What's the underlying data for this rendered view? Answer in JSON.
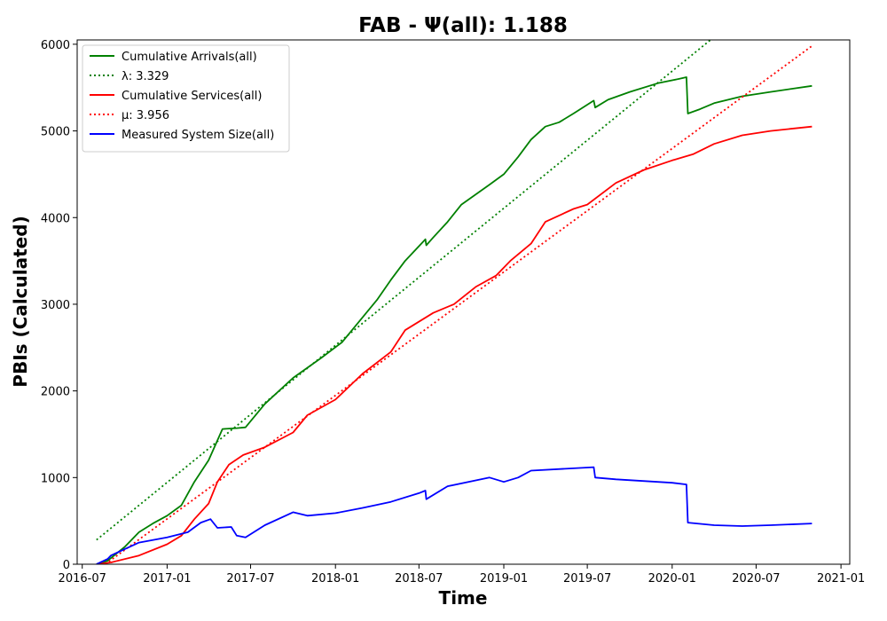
{
  "chart_data": {
    "type": "line",
    "title": "FAB -  Ψ(all): 1.188",
    "xlabel": "Time",
    "ylabel": "PBIs (Calculated)",
    "xlim": [
      "2016-06-20",
      "2021-01-20"
    ],
    "ylim": [
      0,
      6050
    ],
    "x_ticks": [
      "2016-07",
      "2017-01",
      "2017-07",
      "2018-01",
      "2018-07",
      "2019-01",
      "2019-07",
      "2020-01",
      "2020-07",
      "2021-01"
    ],
    "y_ticks": [
      0,
      1000,
      2000,
      3000,
      4000,
      5000,
      6000
    ],
    "grid": false,
    "legend_position": "top-left",
    "series": [
      {
        "name": "Cumulative Arrivals(all)",
        "color": "#008000",
        "style": "solid",
        "points": [
          [
            "2016-08-01",
            0
          ],
          [
            "2016-08-25",
            40
          ],
          [
            "2016-10-01",
            200
          ],
          [
            "2016-11-01",
            370
          ],
          [
            "2016-12-01",
            470
          ],
          [
            "2017-01-01",
            560
          ],
          [
            "2017-02-01",
            680
          ],
          [
            "2017-03-01",
            950
          ],
          [
            "2017-04-01",
            1200
          ],
          [
            "2017-05-01",
            1560
          ],
          [
            "2017-06-01",
            1570
          ],
          [
            "2017-06-20",
            1580
          ],
          [
            "2017-08-01",
            1850
          ],
          [
            "2017-10-01",
            2150
          ],
          [
            "2017-12-01",
            2380
          ],
          [
            "2018-01-15",
            2560
          ],
          [
            "2018-03-01",
            2850
          ],
          [
            "2018-04-01",
            3050
          ],
          [
            "2018-05-01",
            3280
          ],
          [
            "2018-06-01",
            3500
          ],
          [
            "2018-07-15",
            3750
          ],
          [
            "2018-07-17",
            3680
          ],
          [
            "2018-08-01",
            3770
          ],
          [
            "2018-09-01",
            3950
          ],
          [
            "2018-10-01",
            4150
          ],
          [
            "2018-12-01",
            4380
          ],
          [
            "2019-01-01",
            4500
          ],
          [
            "2019-02-01",
            4700
          ],
          [
            "2019-03-01",
            4900
          ],
          [
            "2019-04-01",
            5050
          ],
          [
            "2019-05-01",
            5100
          ],
          [
            "2019-06-01",
            5200
          ],
          [
            "2019-07-15",
            5350
          ],
          [
            "2019-07-18",
            5270
          ],
          [
            "2019-08-15",
            5360
          ],
          [
            "2019-10-01",
            5450
          ],
          [
            "2019-12-01",
            5550
          ],
          [
            "2020-01-15",
            5600
          ],
          [
            "2020-02-01",
            5620
          ],
          [
            "2020-02-04",
            5200
          ],
          [
            "2020-03-01",
            5250
          ],
          [
            "2020-04-01",
            5320
          ],
          [
            "2020-06-01",
            5400
          ],
          [
            "2020-08-01",
            5450
          ],
          [
            "2020-10-30",
            5520
          ]
        ]
      },
      {
        "name": "λ: 3.329",
        "color": "#008000",
        "style": "dotted",
        "points": [
          [
            "2016-08-01",
            280
          ],
          [
            "2020-03-24",
            6050
          ]
        ]
      },
      {
        "name": "Cumulative Services(all)",
        "color": "#ff0000",
        "style": "solid",
        "points": [
          [
            "2016-08-01",
            0
          ],
          [
            "2016-09-01",
            20
          ],
          [
            "2016-11-01",
            100
          ],
          [
            "2017-01-01",
            230
          ],
          [
            "2017-02-01",
            330
          ],
          [
            "2017-03-01",
            520
          ],
          [
            "2017-04-01",
            700
          ],
          [
            "2017-04-20",
            950
          ],
          [
            "2017-05-15",
            1150
          ],
          [
            "2017-06-15",
            1260
          ],
          [
            "2017-08-01",
            1350
          ],
          [
            "2017-10-01",
            1520
          ],
          [
            "2017-11-01",
            1720
          ],
          [
            "2018-01-01",
            1900
          ],
          [
            "2018-03-01",
            2200
          ],
          [
            "2018-05-01",
            2450
          ],
          [
            "2018-06-01",
            2700
          ],
          [
            "2018-08-01",
            2900
          ],
          [
            "2018-09-15",
            3000
          ],
          [
            "2018-11-01",
            3200
          ],
          [
            "2018-12-15",
            3330
          ],
          [
            "2019-01-15",
            3500
          ],
          [
            "2019-03-01",
            3700
          ],
          [
            "2019-04-01",
            3950
          ],
          [
            "2019-06-01",
            4100
          ],
          [
            "2019-07-01",
            4150
          ],
          [
            "2019-09-01",
            4400
          ],
          [
            "2019-11-01",
            4550
          ],
          [
            "2020-01-01",
            4660
          ],
          [
            "2020-02-15",
            4730
          ],
          [
            "2020-04-01",
            4850
          ],
          [
            "2020-06-01",
            4950
          ],
          [
            "2020-08-01",
            5000
          ],
          [
            "2020-10-30",
            5050
          ]
        ]
      },
      {
        "name": "μ: 3.956",
        "color": "#ff0000",
        "style": "dotted",
        "points": [
          [
            "2016-08-20",
            0
          ],
          [
            "2020-10-30",
            5980
          ]
        ]
      },
      {
        "name": "Measured System Size(all)",
        "color": "#0000ff",
        "style": "solid",
        "points": [
          [
            "2016-08-01",
            0
          ],
          [
            "2016-08-25",
            60
          ],
          [
            "2016-09-01",
            100
          ],
          [
            "2016-11-01",
            250
          ],
          [
            "2017-01-01",
            310
          ],
          [
            "2017-02-15",
            370
          ],
          [
            "2017-03-15",
            480
          ],
          [
            "2017-04-05",
            520
          ],
          [
            "2017-04-20",
            420
          ],
          [
            "2017-05-20",
            430
          ],
          [
            "2017-06-01",
            330
          ],
          [
            "2017-06-20",
            310
          ],
          [
            "2017-08-01",
            450
          ],
          [
            "2017-10-01",
            600
          ],
          [
            "2017-11-01",
            560
          ],
          [
            "2018-01-01",
            590
          ],
          [
            "2018-03-01",
            650
          ],
          [
            "2018-05-01",
            720
          ],
          [
            "2018-07-01",
            820
          ],
          [
            "2018-07-15",
            850
          ],
          [
            "2018-07-17",
            750
          ],
          [
            "2018-09-01",
            900
          ],
          [
            "2018-12-01",
            1000
          ],
          [
            "2019-01-01",
            950
          ],
          [
            "2019-02-01",
            1000
          ],
          [
            "2019-03-01",
            1080
          ],
          [
            "2019-07-15",
            1120
          ],
          [
            "2019-07-18",
            1000
          ],
          [
            "2019-09-01",
            980
          ],
          [
            "2020-01-01",
            940
          ],
          [
            "2020-02-01",
            920
          ],
          [
            "2020-02-04",
            480
          ],
          [
            "2020-04-01",
            450
          ],
          [
            "2020-06-01",
            440
          ],
          [
            "2020-08-01",
            450
          ],
          [
            "2020-10-30",
            470
          ]
        ]
      }
    ]
  }
}
